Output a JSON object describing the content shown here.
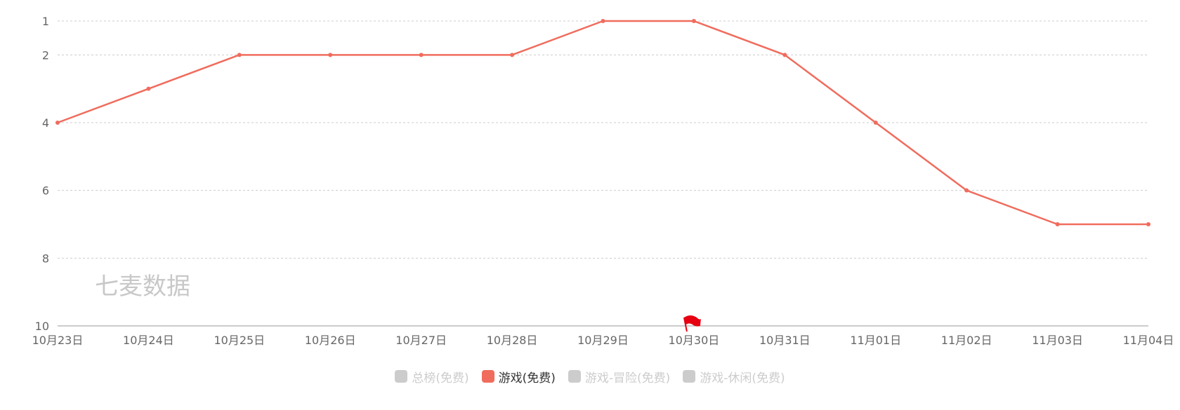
{
  "chart_data": {
    "type": "line",
    "x": [
      "10月23日",
      "10月24日",
      "10月25日",
      "10月26日",
      "10月27日",
      "10月28日",
      "10月29日",
      "10月30日",
      "10月31日",
      "11月01日",
      "11月02日",
      "11月03日",
      "11月04日"
    ],
    "series": [
      {
        "name": "游戏(免费)",
        "values": [
          4,
          3,
          2,
          2,
          2,
          2,
          1,
          1,
          2,
          4,
          6,
          7,
          7
        ],
        "color": "#f06c5d"
      }
    ],
    "y_ticks": [
      1,
      2,
      4,
      6,
      8,
      10
    ],
    "ylim": [
      1,
      10
    ],
    "y_inverse": true,
    "grid": "dashed horizontal",
    "legend_position": "bottom-center",
    "flag_marker_at": "10月30日",
    "watermark": "七麦数据"
  },
  "legend": {
    "items": [
      {
        "label": "总榜(免费)",
        "active": false,
        "color": "#cccccc"
      },
      {
        "label": "游戏(免费)",
        "active": true,
        "color": "#f06c5d"
      },
      {
        "label": "游戏-冒险(免费)",
        "active": false,
        "color": "#cccccc"
      },
      {
        "label": "游戏-休闲(免费)",
        "active": false,
        "color": "#cccccc"
      }
    ]
  },
  "colors": {
    "series": "#f06c5d",
    "flag": "#e60012",
    "axis_text": "#666666",
    "grid": "#cccccc",
    "watermark": "#c8c8c8"
  }
}
